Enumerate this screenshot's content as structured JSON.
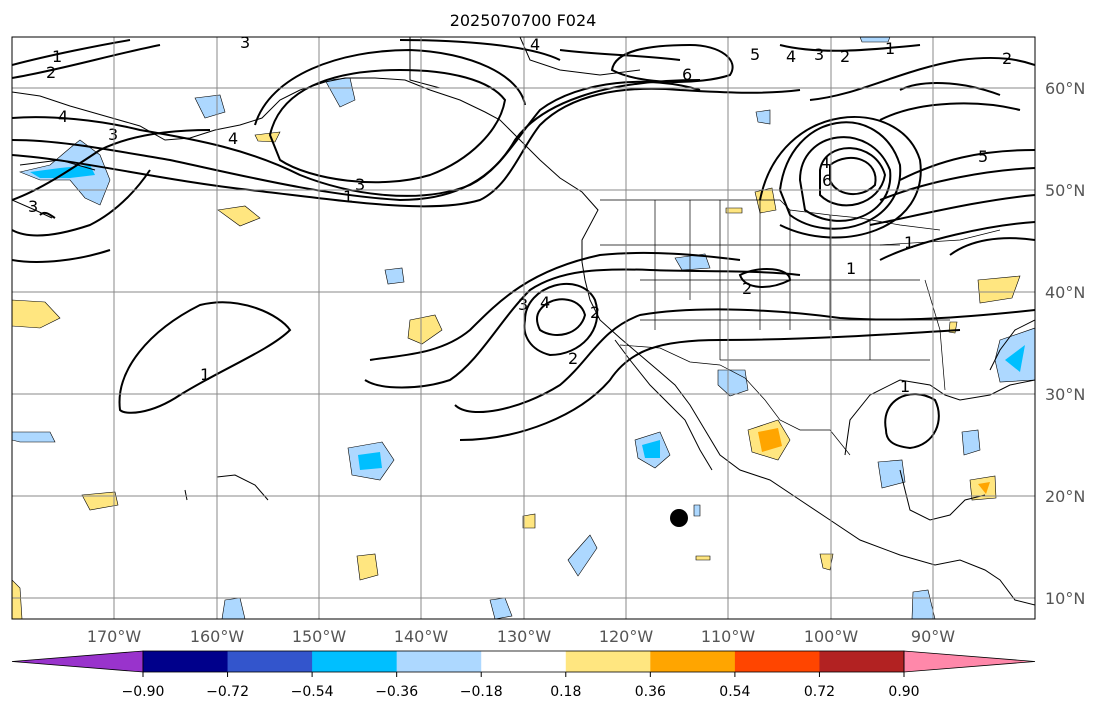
{
  "title": "2025070700 F024",
  "map": {
    "lon_labels": [
      "170°W",
      "160°W",
      "150°W",
      "140°W",
      "130°W",
      "120°W",
      "110°W",
      "100°W",
      "90°W"
    ],
    "lat_labels": [
      "60°N",
      "50°N",
      "40°N",
      "30°N",
      "20°N",
      "10°N"
    ],
    "contour_labels": [
      "1",
      "2",
      "3",
      "4",
      "3",
      "4",
      "3",
      "1",
      "1",
      "2",
      "3",
      "4",
      "6",
      "4",
      "5",
      "4",
      "3",
      "2",
      "1",
      "5",
      "6",
      "1",
      "1",
      "2",
      "3",
      "4",
      "2",
      "1",
      "2"
    ],
    "marker": "black dot"
  },
  "colorbar": {
    "ticks": [
      "−0.90",
      "−0.72",
      "−0.54",
      "−0.36",
      "−0.18",
      "0.18",
      "0.36",
      "0.54",
      "0.72",
      "0.90"
    ],
    "colors": [
      "#9933cc",
      "#00008b",
      "#3355cc",
      "#00bfff",
      "#add8ff",
      "#ffffff",
      "#ffe680",
      "#ffa500",
      "#ff4500",
      "#b22222",
      "#ff88aa"
    ]
  }
}
